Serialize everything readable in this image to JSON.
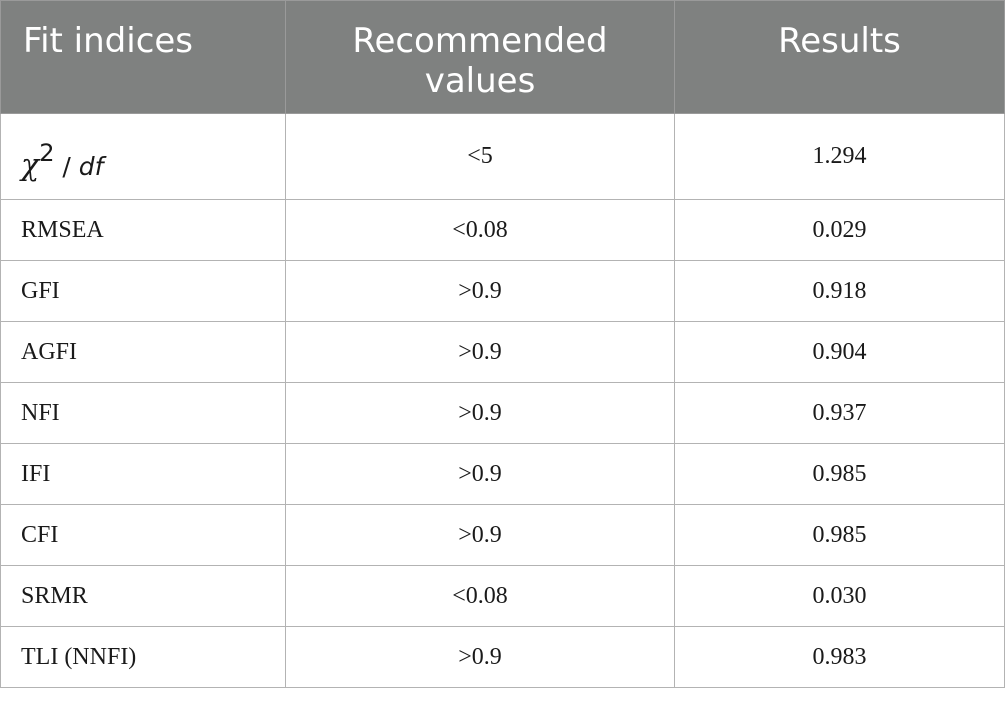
{
  "table": {
    "headers": [
      "Fit indices",
      "Recommended values",
      "Results"
    ],
    "first_row": {
      "index_symbol": "χ",
      "index_superscript": "2",
      "index_slash": " / ",
      "index_df": "df",
      "recommended": "<5",
      "result": "1.294"
    },
    "rows": [
      {
        "index": "RMSEA",
        "recommended": "<0.08",
        "result": "0.029"
      },
      {
        "index": "GFI",
        "recommended": ">0.9",
        "result": "0.918"
      },
      {
        "index": "AGFI",
        "recommended": ">0.9",
        "result": "0.904"
      },
      {
        "index": "NFI",
        "recommended": ">0.9",
        "result": "0.937"
      },
      {
        "index": "IFI",
        "recommended": ">0.9",
        "result": "0.985"
      },
      {
        "index": "CFI",
        "recommended": ">0.9",
        "result": "0.985"
      },
      {
        "index": "SRMR",
        "recommended": "<0.08",
        "result": "0.030"
      },
      {
        "index": "TLI (NNFI)",
        "recommended": ">0.9",
        "result": "0.983"
      }
    ]
  }
}
